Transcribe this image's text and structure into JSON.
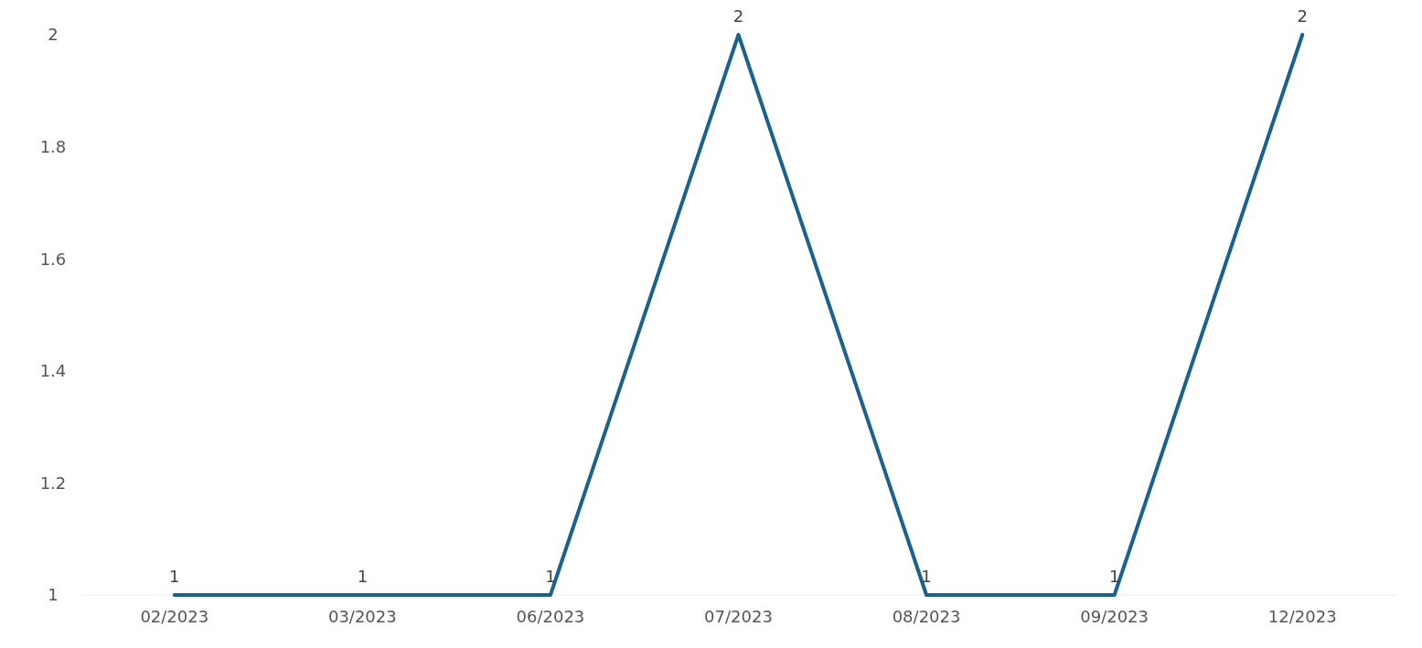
{
  "chart_data": {
    "type": "line",
    "categories": [
      "02/2023",
      "03/2023",
      "06/2023",
      "07/2023",
      "08/2023",
      "09/2023",
      "12/2023"
    ],
    "series": [
      {
        "color": "#1a6190",
        "values": [
          1,
          1,
          1,
          2,
          1,
          1,
          2
        ]
      }
    ],
    "ylim": [
      1,
      2
    ],
    "yticks": [
      1,
      1.2,
      1.4,
      1.6,
      1.8,
      2
    ],
    "data_labels": true,
    "marker": "none",
    "line_style": "solid"
  }
}
